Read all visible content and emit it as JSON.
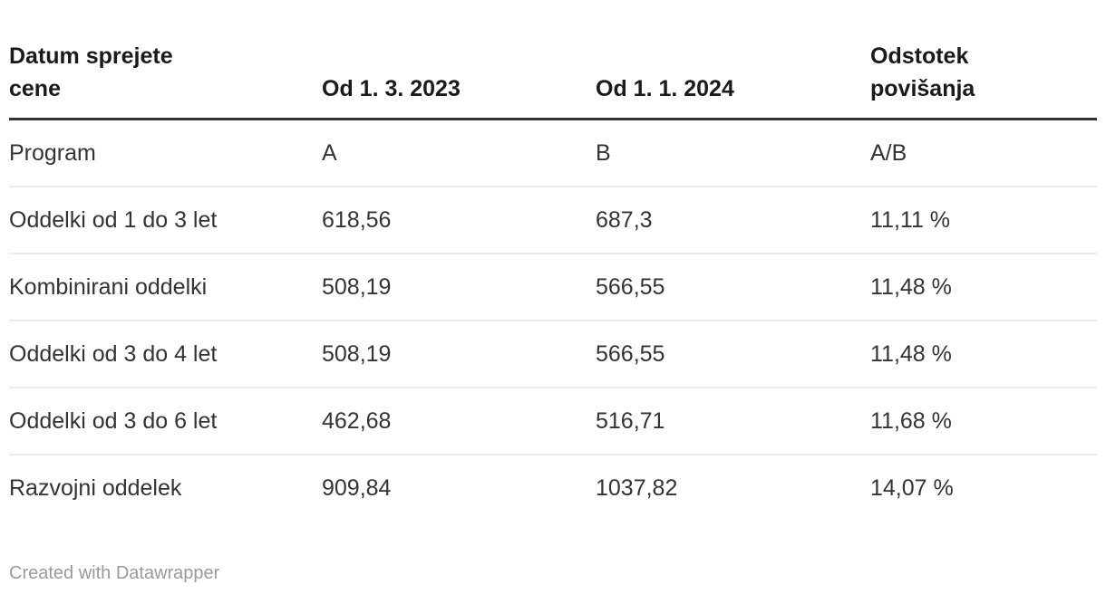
{
  "chart_data": {
    "type": "table",
    "columns": [
      "Datum sprejete cene",
      "Od 1. 3. 2023",
      "Od 1. 1. 2024",
      "Odstotek povišanja"
    ],
    "rows": [
      [
        "Program",
        "A",
        "B",
        "A/B"
      ],
      [
        "Oddelki od 1 do 3 let",
        "618,56",
        "687,3",
        "11,11 %"
      ],
      [
        "Kombinirani oddelki",
        "508,19",
        "566,55",
        "11,48 %"
      ],
      [
        "Oddelki od 3 do 4 let",
        "508,19",
        "566,55",
        "11,48 %"
      ],
      [
        "Oddelki od 3 do 6 let",
        "462,68",
        "516,71",
        "11,68 %"
      ],
      [
        "Razvojni oddelek",
        "909,84",
        "1037,82",
        "14,07 %"
      ]
    ]
  },
  "table": {
    "columns": [
      {
        "label": "Datum sprejete\ncene"
      },
      {
        "label": "Od 1. 3. 2023"
      },
      {
        "label": "Od 1. 1. 2024"
      },
      {
        "label": "Odstotek\npovišanja"
      }
    ]
  },
  "footer": {
    "attribution": "Created with Datawrapper"
  },
  "colors": {
    "header_text": "#1a1a1a",
    "body_text": "#333333",
    "header_rule": "#333333",
    "row_separator": "#ebebeb",
    "attribution_text": "#9a9a9a",
    "background": "#ffffff"
  }
}
